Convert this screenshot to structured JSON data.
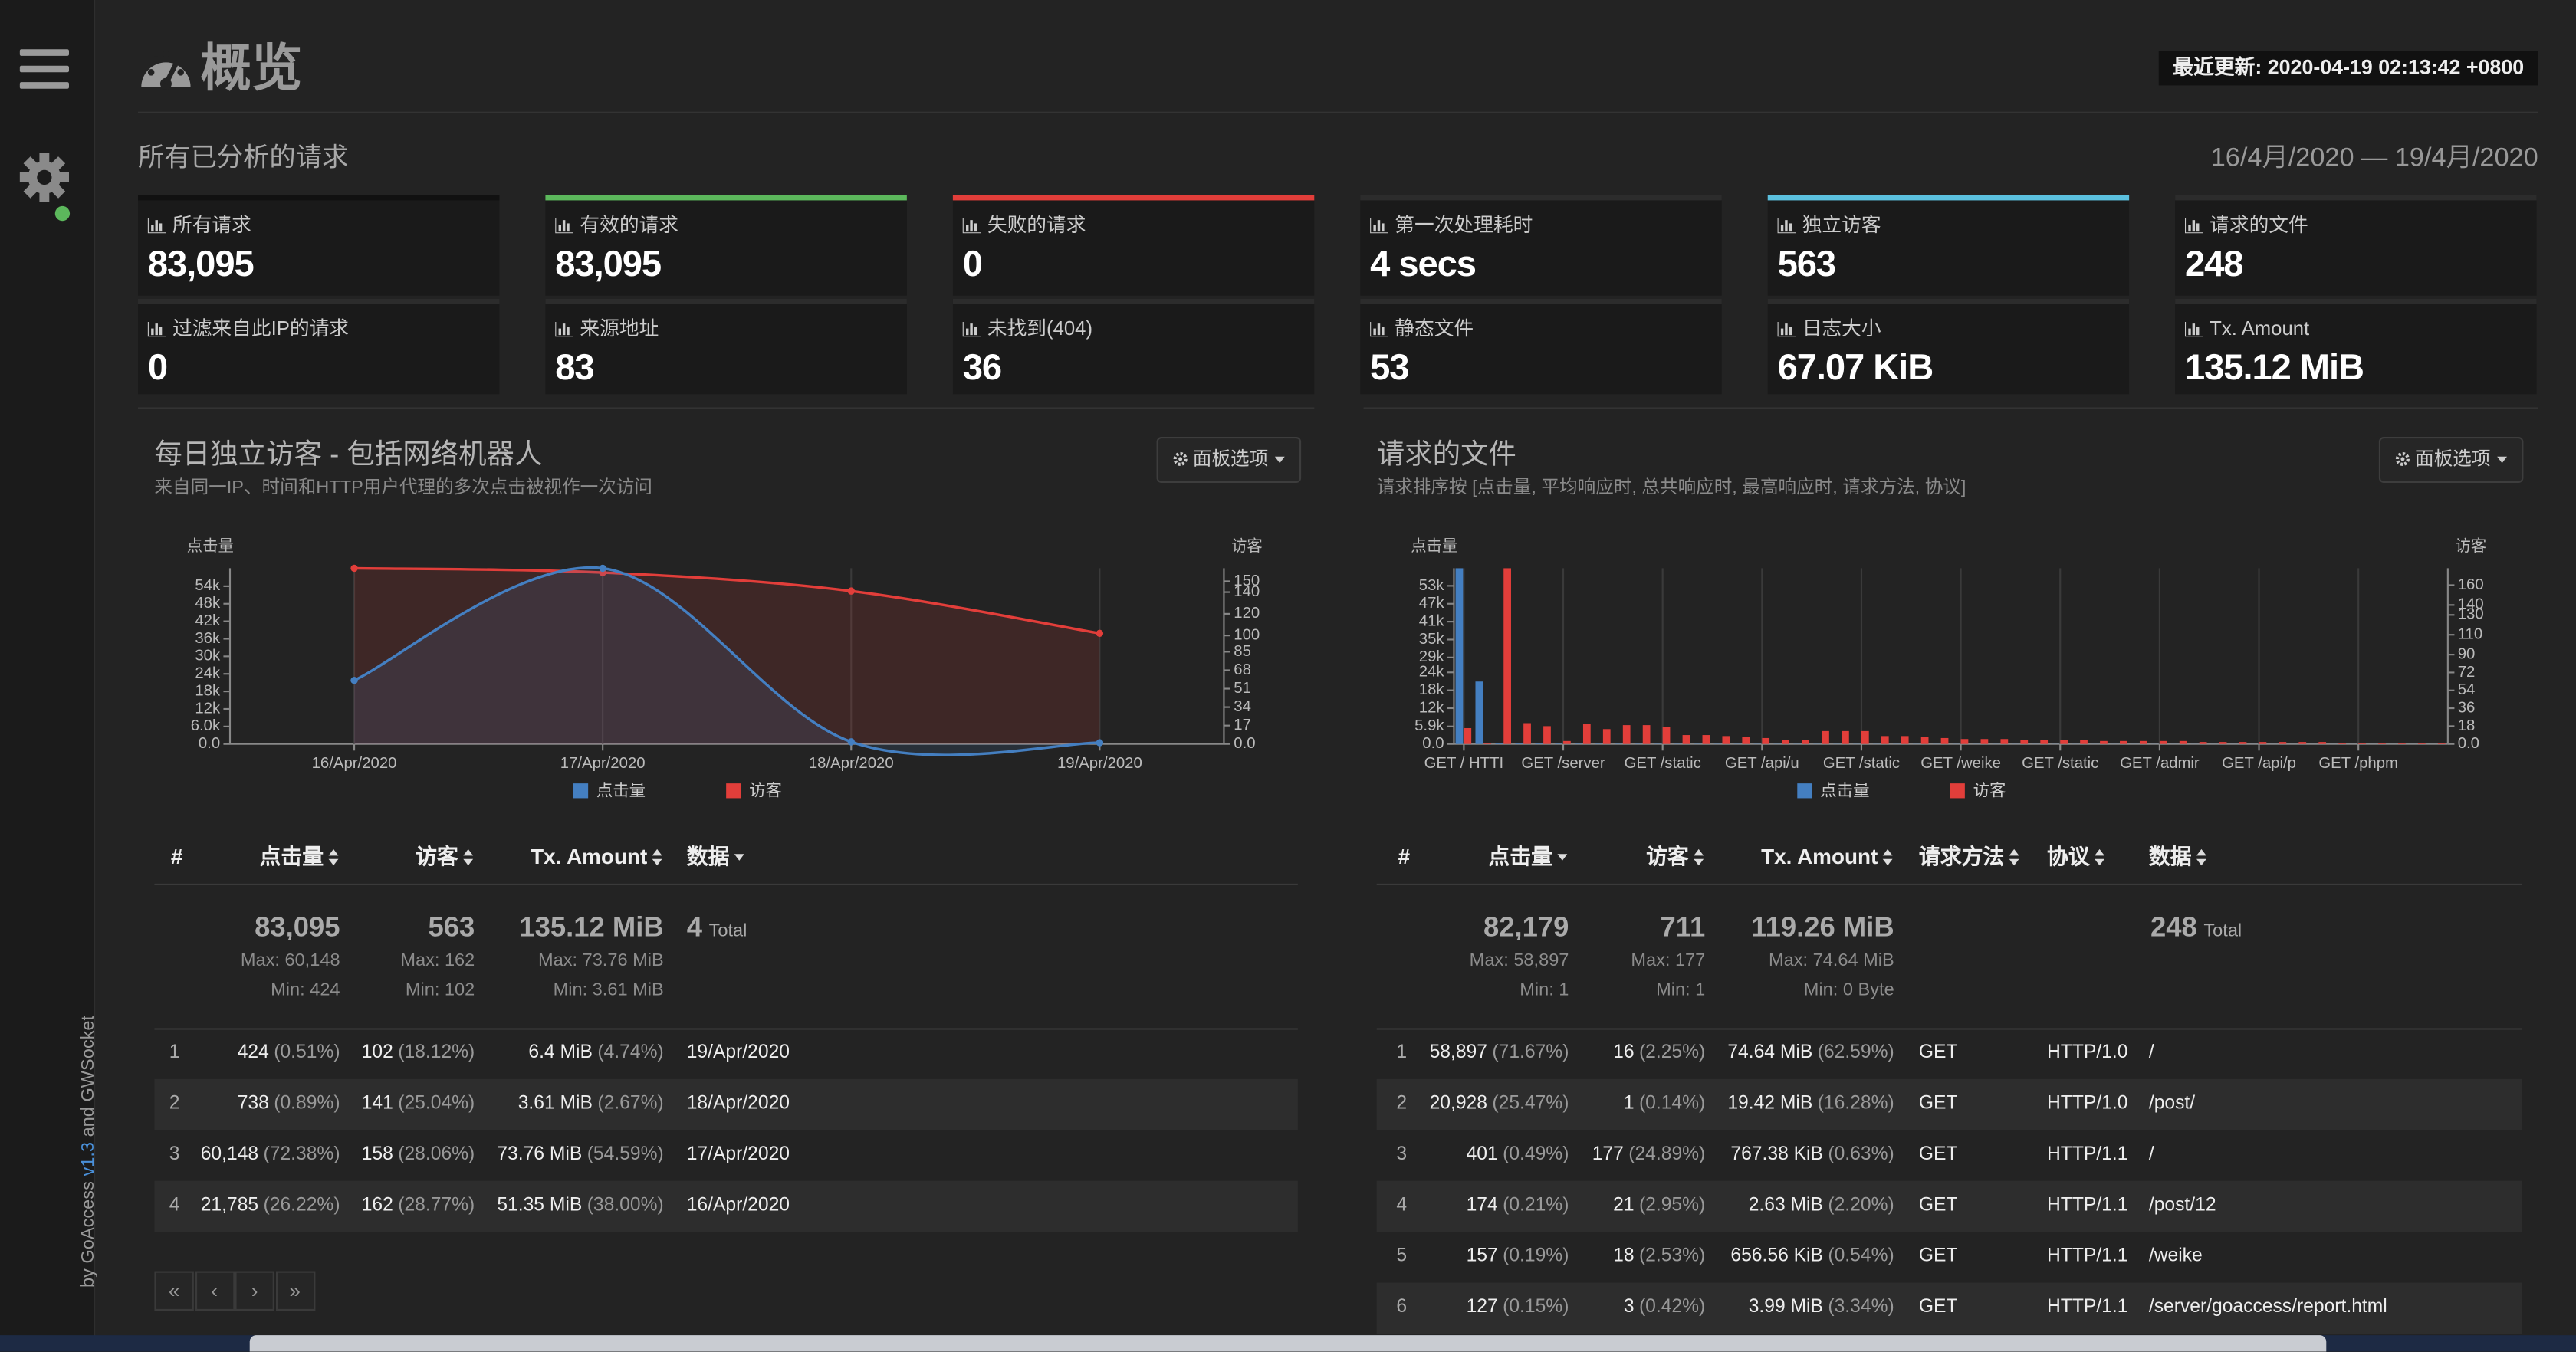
{
  "sidebar": {
    "credit_prefix": "by GoAccess",
    "version": "v1.3",
    "credit_suffix": "and GWSocket"
  },
  "header": {
    "title": "概览",
    "last_updated": "最近更新: 2020-04-19 02:13:42 +0800"
  },
  "overall": {
    "title": "所有已分析的请求",
    "date_range": "16/4月/2020 — 19/4月/2020",
    "metrics": [
      {
        "label": "所有请求",
        "value": "83,095",
        "color": "#111111"
      },
      {
        "label": "有效的请求",
        "value": "83,095",
        "color": "#5cb85c"
      },
      {
        "label": "失败的请求",
        "value": "0",
        "color": "#e23e3a"
      },
      {
        "label": "第一次处理耗时",
        "value": "4 secs"
      },
      {
        "label": "独立访客",
        "value": "563",
        "color": "#5bc0de"
      },
      {
        "label": "请求的文件",
        "value": "248"
      },
      {
        "label": "过滤来自此IP的请求",
        "value": "0"
      },
      {
        "label": "来源地址",
        "value": "83"
      },
      {
        "label": "未找到(404)",
        "value": "36"
      },
      {
        "label": "静态文件",
        "value": "53"
      },
      {
        "label": "日志大小",
        "value": "67.07 KiB"
      },
      {
        "label": "Tx. Amount",
        "value": "135.12 MiB"
      }
    ]
  },
  "panels": [
    {
      "title": "每日独立访客 - 包括网络机器人",
      "subtitle": "来自同一IP、时间和HTTP用户代理的多次点击被视作一次访问",
      "options_button": "面板选项",
      "chart": {
        "type": "area",
        "ylabel": "点击量",
        "y2label": "访客",
        "categories": [
          "16/Apr/2020",
          "17/Apr/2020",
          "18/Apr/2020",
          "19/Apr/2020"
        ],
        "series": [
          {
            "name": "点击量",
            "color": "#447fc1",
            "axis": "y",
            "values": [
              21785,
              60148,
              738,
              424
            ]
          },
          {
            "name": "访客",
            "color": "#e23e3a",
            "axis": "y2",
            "values": [
              162,
              158,
              141,
              102
            ]
          }
        ],
        "ylim": [
          0,
          60148
        ],
        "yticks": [
          {
            "value": 0,
            "label": "0.0"
          },
          {
            "value": 6000,
            "label": "6.0k"
          },
          {
            "value": 12000,
            "label": "12k"
          },
          {
            "value": 18000,
            "label": "18k"
          },
          {
            "value": 24000,
            "label": "24k"
          },
          {
            "value": 30000,
            "label": "30k"
          },
          {
            "value": 36000,
            "label": "36k"
          },
          {
            "value": 42000,
            "label": "42k"
          },
          {
            "value": 48000,
            "label": "48k"
          },
          {
            "value": 54000,
            "label": "54k"
          }
        ],
        "y2lim": [
          0,
          162
        ],
        "y2ticks": [
          {
            "value": 0,
            "label": "0.0"
          },
          17,
          34,
          51,
          68,
          85,
          100,
          120,
          140,
          150
        ]
      },
      "table": {
        "columns": [
          {
            "label": "#"
          },
          {
            "label": "点击量",
            "sort": "both"
          },
          {
            "label": "访客",
            "sort": "both"
          },
          {
            "label": "Tx. Amount",
            "sort": "both"
          },
          {
            "label": "数据",
            "sort": "desc"
          }
        ],
        "summary": [
          {
            "total": "83,095",
            "max": "Max: 60,148",
            "min": "Min: 424"
          },
          {
            "total": "563",
            "max": "Max: 162",
            "min": "Min: 102"
          },
          {
            "total": "135.12 MiB",
            "max": "Max: 73.76 MiB",
            "min": "Min: 3.61 MiB"
          },
          {
            "total": "4",
            "unit": "Total"
          }
        ],
        "rows": [
          [
            "1",
            {
              "value": "424",
              "pct": "(0.51%)"
            },
            {
              "value": "102",
              "pct": "(18.12%)"
            },
            {
              "value": "6.4 MiB",
              "pct": "(4.74%)"
            },
            "19/Apr/2020"
          ],
          [
            "2",
            {
              "value": "738",
              "pct": "(0.89%)"
            },
            {
              "value": "141",
              "pct": "(25.04%)"
            },
            {
              "value": "3.61 MiB",
              "pct": "(2.67%)"
            },
            "18/Apr/2020"
          ],
          [
            "3",
            {
              "value": "60,148",
              "pct": "(72.38%)"
            },
            {
              "value": "158",
              "pct": "(28.06%)"
            },
            {
              "value": "73.76 MiB",
              "pct": "(54.59%)"
            },
            "17/Apr/2020"
          ],
          [
            "4",
            {
              "value": "21,785",
              "pct": "(26.22%)"
            },
            {
              "value": "162",
              "pct": "(28.77%)"
            },
            {
              "value": "51.35 MiB",
              "pct": "(38.00%)"
            },
            "16/Apr/2020"
          ]
        ]
      },
      "pagination": [
        "«",
        "‹",
        "›",
        "»"
      ]
    },
    {
      "title": "请求的文件",
      "subtitle": "请求排序按 [点击量, 平均响应时, 总共响应时, 最高响应时, 请求方法, 协议]",
      "options_button": "面板选项",
      "chart": {
        "type": "bar",
        "ylabel": "点击量",
        "y2label": "访客",
        "categories": [
          "GET / HTTI",
          null,
          null,
          null,
          null,
          "GET /server",
          null,
          null,
          null,
          null,
          "GET /static",
          null,
          null,
          null,
          null,
          "GET /api/u",
          null,
          null,
          null,
          null,
          "GET /static",
          null,
          null,
          null,
          null,
          "GET /weike",
          null,
          null,
          null,
          null,
          "GET /static",
          null,
          null,
          null,
          null,
          "GET /admir",
          null,
          null,
          null,
          null,
          "GET /api/p",
          null,
          null,
          null,
          null,
          "GET /phpm",
          null,
          null,
          null,
          null
        ],
        "series": [
          {
            "name": "点击量",
            "color": "#447fc1",
            "axis": "y",
            "values": [
              58897,
              20928,
              401,
              174,
              157,
              127,
              118,
              110,
              104,
              98,
              93,
              88,
              84,
              80,
              76,
              72,
              69,
              66,
              63,
              60,
              57,
              55,
              52,
              50,
              48,
              46,
              44,
              42,
              40,
              38,
              36,
              35,
              33,
              32,
              30,
              29,
              28,
              26,
              25,
              24,
              22,
              21,
              20,
              19,
              18,
              17,
              16,
              15,
              14,
              13
            ]
          },
          {
            "name": "访客",
            "color": "#e23e3a",
            "axis": "y2",
            "values": [
              16,
              1,
              177,
              21,
              18,
              3,
              20,
              15,
              19,
              19,
              17,
              9,
              9,
              8,
              7,
              6,
              4,
              4,
              13,
              13,
              13,
              8,
              8,
              7,
              6,
              5,
              5,
              5,
              4,
              4,
              4,
              4,
              3,
              3,
              3,
              3,
              3,
              2,
              2,
              2,
              2,
              2,
              2,
              2,
              1,
              1,
              1,
              1,
              1,
              1
            ]
          }
        ],
        "ylim": [
          0,
          58897
        ],
        "yticks": [
          {
            "value": 0,
            "label": "0.0"
          },
          {
            "value": 5900,
            "label": "5.9k"
          },
          {
            "value": 12000,
            "label": "12k"
          },
          {
            "value": 18000,
            "label": "18k"
          },
          {
            "value": 24000,
            "label": "24k"
          },
          {
            "value": 29000,
            "label": "29k"
          },
          {
            "value": 35000,
            "label": "35k"
          },
          {
            "value": 41000,
            "label": "41k"
          },
          {
            "value": 47000,
            "label": "47k"
          },
          {
            "value": 53000,
            "label": "53k"
          }
        ],
        "y2lim": [
          0,
          177
        ],
        "y2ticks": [
          {
            "value": 0,
            "label": "0.0"
          },
          18,
          36,
          54,
          72,
          90,
          110,
          130,
          140,
          160
        ]
      },
      "table": {
        "columns": [
          {
            "label": "#"
          },
          {
            "label": "点击量",
            "sort": "desc"
          },
          {
            "label": "访客",
            "sort": "both"
          },
          {
            "label": "Tx. Amount",
            "sort": "both"
          },
          {
            "label": "请求方法",
            "sort": "both"
          },
          {
            "label": "协议",
            "sort": "both"
          },
          {
            "label": "数据",
            "sort": "both"
          }
        ],
        "summary": [
          {
            "total": "82,179",
            "max": "Max: 58,897",
            "min": "Min: 1"
          },
          {
            "total": "711",
            "max": "Max: 177",
            "min": "Min: 1"
          },
          {
            "total": "119.26 MiB",
            "max": "Max: 74.64 MiB",
            "min": "Min: 0 Byte"
          },
          {
            "total": "248",
            "unit": "Total"
          }
        ],
        "rows": [
          [
            "1",
            {
              "value": "58,897",
              "pct": "(71.67%)"
            },
            {
              "value": "16",
              "pct": "(2.25%)"
            },
            {
              "value": "74.64 MiB",
              "pct": "(62.59%)"
            },
            "GET",
            "HTTP/1.0",
            "/"
          ],
          [
            "2",
            {
              "value": "20,928",
              "pct": "(25.47%)"
            },
            {
              "value": "1",
              "pct": "(0.14%)"
            },
            {
              "value": "19.42 MiB",
              "pct": "(16.28%)"
            },
            "GET",
            "HTTP/1.0",
            "/post/"
          ],
          [
            "3",
            {
              "value": "401",
              "pct": "(0.49%)"
            },
            {
              "value": "177",
              "pct": "(24.89%)"
            },
            {
              "value": "767.38 KiB",
              "pct": "(0.63%)"
            },
            "GET",
            "HTTP/1.1",
            "/"
          ],
          [
            "4",
            {
              "value": "174",
              "pct": "(0.21%)"
            },
            {
              "value": "21",
              "pct": "(2.95%)"
            },
            {
              "value": "2.63 MiB",
              "pct": "(2.20%)"
            },
            "GET",
            "HTTP/1.1",
            "/post/12"
          ],
          [
            "5",
            {
              "value": "157",
              "pct": "(0.19%)"
            },
            {
              "value": "18",
              "pct": "(2.53%)"
            },
            {
              "value": "656.56 KiB",
              "pct": "(0.54%)"
            },
            "GET",
            "HTTP/1.1",
            "/weike"
          ],
          [
            "6",
            {
              "value": "127",
              "pct": "(0.15%)"
            },
            {
              "value": "3",
              "pct": "(0.42%)"
            },
            {
              "value": "3.99 MiB",
              "pct": "(3.34%)"
            },
            "GET",
            "HTTP/1.1",
            "/server/goaccess/report.html"
          ]
        ]
      }
    }
  ]
}
